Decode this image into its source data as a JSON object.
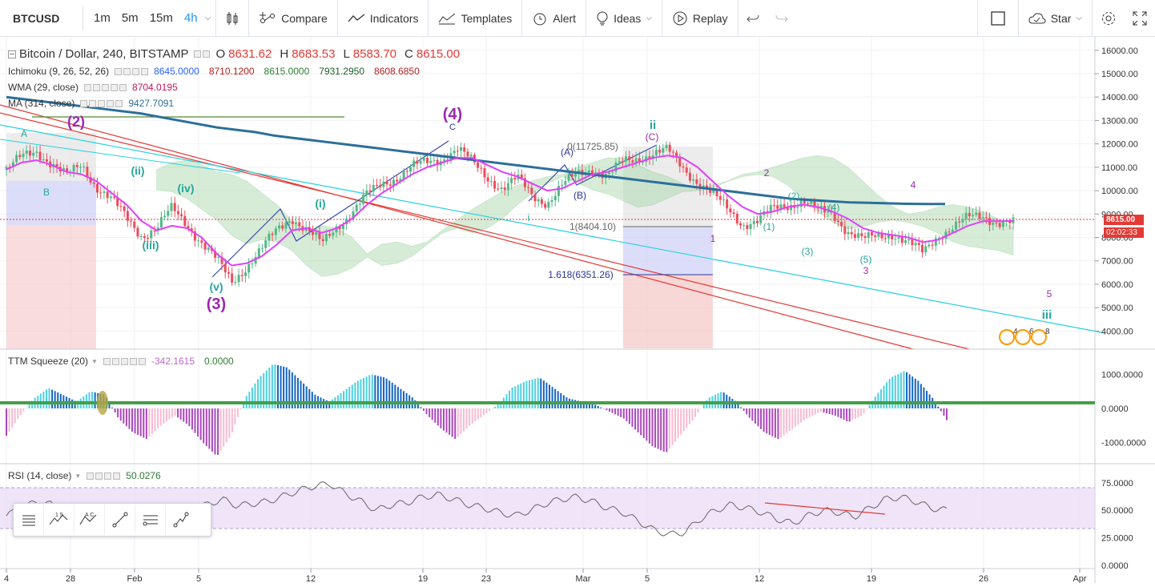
{
  "toolbar": {
    "symbol": "BTCUSD",
    "timeframes": [
      "1m",
      "5m",
      "15m",
      "4h"
    ],
    "active_timeframe": "4h",
    "compare": "Compare",
    "indicators": "Indicators",
    "templates": "Templates",
    "alert": "Alert",
    "ideas": "Ideas",
    "replay": "Replay",
    "star": "Star"
  },
  "legend": {
    "title": "Bitcoin / Dollar, 240, BITSTAMP",
    "o_label": "O",
    "o": "8631.62",
    "h_label": "H",
    "h": "8683.53",
    "l_label": "L",
    "l": "8583.70",
    "c_label": "C",
    "c": "8615.00",
    "ichimoku_name": "Ichimoku (9, 26, 52, 26)",
    "ichimoku_values": [
      "8645.0000",
      "8710.1200",
      "8615.0000",
      "7931.2950",
      "8608.6850"
    ],
    "wma_name": "WMA (29, close)",
    "wma_value": "8704.0195",
    "ma_name": "MA (314, close)",
    "ma_value": "9427.7091",
    "ttm_name": "TTM Squeeze (20)",
    "ttm_value1": "-342.1615",
    "ttm_value2": "0.0000",
    "rsi_name": "RSI (14, close)",
    "rsi_value": "50.0276"
  },
  "price_labels": {
    "last": "8615.00",
    "countdown": "02:02:33"
  },
  "colors": {
    "up": "#53b987",
    "down": "#eb4d5c",
    "wma": "#e040fb",
    "ma": "#2c6e9b",
    "cloud_green": "#a5d6a7",
    "cloud_red": "#ef9a9a",
    "wave_purple": "#9c27b0",
    "wave_teal": "#26a69a",
    "wave_orange": "#e67e00",
    "rsi_band": "#e9d9f7"
  },
  "annotations": {
    "fib_top": "0(11725.85)",
    "fib_mid": "1(8404.10)",
    "fib_ext": "1.618(6351.26)",
    "waves": [
      {
        "t": "(2)",
        "c": "purple"
      },
      {
        "t": "(3)",
        "c": "purple"
      },
      {
        "t": "(4)",
        "c": "purple"
      },
      {
        "t": "(i)",
        "c": "teal"
      },
      {
        "t": "(ii)",
        "c": "teal"
      },
      {
        "t": "(iii)",
        "c": "teal"
      },
      {
        "t": "(iv)",
        "c": "teal"
      },
      {
        "t": "(v)",
        "c": "teal"
      },
      {
        "t": "ii",
        "c": "teal"
      },
      {
        "t": "iii",
        "c": "teal"
      },
      {
        "t": "i",
        "c": "teal"
      },
      {
        "t": "(A)",
        "c": "navy"
      },
      {
        "t": "(B)",
        "c": "navy"
      },
      {
        "t": "(C)",
        "c": "purple"
      },
      {
        "t": "A",
        "c": "teal"
      },
      {
        "t": "B",
        "c": "teal"
      },
      {
        "t": "C",
        "c": "navy"
      },
      {
        "t": "(1)",
        "c": "teal"
      },
      {
        "t": "(2)",
        "c": "teal"
      },
      {
        "t": "(3)",
        "c": "teal"
      },
      {
        "t": "(4)",
        "c": "teal"
      },
      {
        "t": "(5)",
        "c": "teal"
      },
      {
        "t": "1",
        "c": "purple"
      },
      {
        "t": "2",
        "c": "purple"
      },
      {
        "t": "3",
        "c": "purple"
      },
      {
        "t": "4",
        "c": "purple"
      },
      {
        "t": "5",
        "c": "purple"
      }
    ],
    "event_badges": [
      "4",
      "6",
      "8"
    ]
  },
  "chart_data": {
    "type": "line",
    "title": "Bitcoin / Dollar, 240, BITSTAMP",
    "x_ticks": [
      "4",
      "28",
      "Feb",
      "5",
      "12",
      "19",
      "23",
      "Mar",
      "5",
      "12",
      "19",
      "26",
      "Apr"
    ],
    "y_ticks": [
      "16000.00",
      "15000.00",
      "14000.00",
      "13000.00",
      "12000.00",
      "11000.00",
      "10000.00",
      "9000.00",
      "8000.00",
      "7000.00",
      "6000.00",
      "5000.00",
      "4000.00"
    ],
    "ylim": [
      3500,
      16300
    ],
    "scale": "linear",
    "series": [
      {
        "name": "BTCUSD",
        "values": [
          10900,
          11400,
          11700,
          11200,
          10600,
          11100,
          10200,
          9600,
          8800,
          8100,
          8400,
          9200,
          8600,
          7800,
          7000,
          6100,
          6800,
          7500,
          8300,
          8900,
          8300,
          7700,
          8500,
          9100,
          9800,
          10300,
          10600,
          11000,
          11200,
          11400,
          11800,
          11200,
          10600,
          10100,
          10500,
          9800,
          9500,
          10200,
          10700,
          11000,
          10600,
          11200,
          11400,
          11600,
          11700,
          11000,
          10400,
          9800,
          9200,
          8600,
          8700,
          9200,
          9400,
          9600,
          9100,
          9000,
          8300,
          7900,
          8000,
          8200,
          7800,
          7300,
          8100,
          8500,
          8800,
          8900,
          8700,
          8615
        ]
      },
      {
        "name": "WMA (29, close)",
        "values": [
          10900,
          11200,
          11300,
          11100,
          10800,
          10700,
          10400,
          9900,
          9400,
          8700,
          8300,
          8500,
          8400,
          8000,
          7300,
          6800,
          6900,
          7200,
          7700,
          8300,
          8400,
          8200,
          8400,
          8800,
          9400,
          9900,
          10300,
          10700,
          11000,
          11200,
          11400,
          11400,
          11100,
          10800,
          10600,
          10300,
          10000,
          10100,
          10400,
          10700,
          10800,
          11000,
          11200,
          11400,
          11500,
          11400,
          11000,
          10400,
          9800,
          9300,
          9000,
          9100,
          9300,
          9400,
          9300,
          9100,
          8800,
          8400,
          8200,
          8100,
          8000,
          7800,
          7900,
          8200,
          8500,
          8700,
          8700,
          8704
        ]
      },
      {
        "name": "MA (314, close)",
        "values": [
          14000,
          13900,
          13800,
          13700,
          13600,
          13500,
          13400,
          13300,
          13150,
          13000,
          12850,
          12700,
          12600,
          12500,
          12350,
          12250,
          12150,
          12050,
          11950,
          11850,
          11750,
          11650,
          11550,
          11450,
          11350,
          11250,
          11150,
          11050,
          10950,
          10850,
          10750,
          10650,
          10550,
          10450,
          10350,
          10250,
          10150,
          10050,
          9950,
          9850,
          9750,
          9650,
          9600,
          9550,
          9500,
          9480,
          9460,
          9440,
          9430,
          9428
        ]
      }
    ],
    "ttm_squeeze": {
      "name": "TTM Squeeze (20)",
      "ylim": [
        -1500,
        1500
      ],
      "y_ticks": [
        "1000.0000",
        "0.0000",
        "-1000.0000"
      ],
      "values": [
        -800,
        -200,
        300,
        600,
        400,
        200,
        500,
        400,
        -300,
        -700,
        -900,
        -500,
        -200,
        -500,
        -1000,
        -1400,
        -800,
        300,
        900,
        1300,
        1200,
        800,
        400,
        200,
        500,
        800,
        1000,
        900,
        600,
        300,
        -200,
        -600,
        -900,
        -500,
        -200,
        100,
        600,
        800,
        900,
        600,
        300,
        200,
        100,
        -100,
        -300,
        -700,
        -1100,
        -1300,
        -800,
        -300,
        300,
        500,
        200,
        -300,
        -700,
        -900,
        -600,
        -300,
        -100,
        -200,
        -400,
        -200,
        400,
        900,
        1100,
        800,
        300,
        -342
      ]
    },
    "rsi": {
      "name": "RSI (14, close)",
      "ylim": [
        0,
        85
      ],
      "y_ticks": [
        "75.0000",
        "50.0000",
        "25.0000",
        "0.0000"
      ],
      "values": [
        45,
        52,
        58,
        55,
        40,
        35,
        42,
        38,
        32,
        28,
        35,
        45,
        50,
        55,
        60,
        54,
        56,
        58,
        63,
        68,
        72,
        74,
        65,
        58,
        50,
        55,
        57,
        62,
        64,
        60,
        55,
        52,
        48,
        45,
        50,
        56,
        60,
        62,
        58,
        52,
        48,
        40,
        32,
        28,
        30,
        42,
        50,
        55,
        52,
        48,
        42,
        38,
        45,
        50,
        48,
        44,
        52,
        60,
        62,
        58,
        52,
        50
      ]
    }
  }
}
